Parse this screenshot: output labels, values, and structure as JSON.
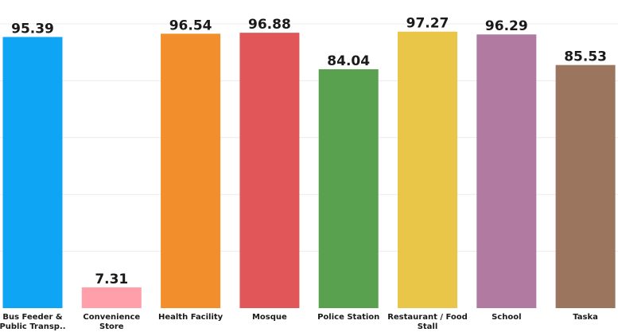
{
  "chart_data": {
    "type": "bar",
    "categories": [
      [
        "Bus Feeder &",
        "Public Transp.."
      ],
      [
        "Convenience",
        "Store"
      ],
      [
        "Health Facility"
      ],
      [
        "Mosque"
      ],
      [
        "Police Station"
      ],
      [
        "Restaurant / Food",
        "Stall"
      ],
      [
        "School"
      ],
      [
        "Taska"
      ]
    ],
    "values": [
      95.39,
      7.31,
      96.54,
      96.88,
      84.04,
      97.27,
      96.29,
      85.53
    ],
    "value_labels": [
      "95.39",
      "7.31",
      "96.54",
      "96.88",
      "84.04",
      "97.27",
      "96.29",
      "85.53"
    ],
    "colors": [
      "#0ea5f5",
      "#ff9fa9",
      "#f28e2b",
      "#e15759",
      "#59a14f",
      "#e9c647",
      "#b07aa1",
      "#9c755f"
    ],
    "ylim": [
      0,
      100
    ],
    "grid": true,
    "legend": "none"
  }
}
